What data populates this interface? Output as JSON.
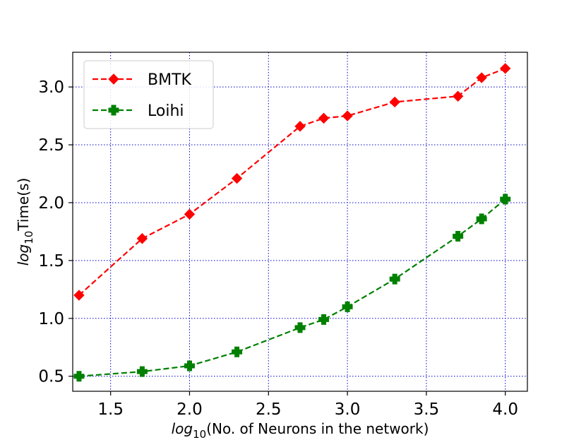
{
  "chart_data": {
    "type": "line",
    "xlabel": {
      "prefix": "log",
      "sub": "10",
      "rest": "(No. of Neurons in the network)"
    },
    "ylabel": {
      "prefix": "log",
      "sub": "10",
      "rest": "Time(s)"
    },
    "xlim": [
      1.26,
      4.14
    ],
    "ylim": [
      0.37,
      3.3
    ],
    "xticks": [
      1.5,
      2.0,
      2.5,
      3.0,
      3.5,
      4.0
    ],
    "yticks": [
      0.5,
      1.0,
      1.5,
      2.0,
      2.5,
      3.0
    ],
    "xtick_labels": [
      "1.5",
      "2.0",
      "2.5",
      "3.0",
      "3.5",
      "4.0"
    ],
    "ytick_labels": [
      "0.5",
      "1.0",
      "1.5",
      "2.0",
      "2.5",
      "3.0"
    ],
    "grid": true,
    "grid_color": "#0000cc",
    "legend_position": "top-left",
    "series": [
      {
        "name": "BMTK",
        "color": "#ff0000",
        "marker": "diamond",
        "x": [
          1.3,
          1.7,
          2.0,
          2.3,
          2.7,
          2.85,
          3.0,
          3.3,
          3.7,
          3.85,
          4.0
        ],
        "values": [
          1.2,
          1.69,
          1.9,
          2.21,
          2.66,
          2.73,
          2.75,
          2.87,
          2.92,
          3.08,
          3.16
        ]
      },
      {
        "name": "Loihi",
        "color": "#008000",
        "marker": "plus",
        "x": [
          1.3,
          1.7,
          2.0,
          2.3,
          2.7,
          2.85,
          3.0,
          3.3,
          3.7,
          3.85,
          4.0
        ],
        "values": [
          0.5,
          0.54,
          0.59,
          0.71,
          0.92,
          0.99,
          1.1,
          1.34,
          1.71,
          1.86,
          2.03
        ]
      }
    ]
  }
}
